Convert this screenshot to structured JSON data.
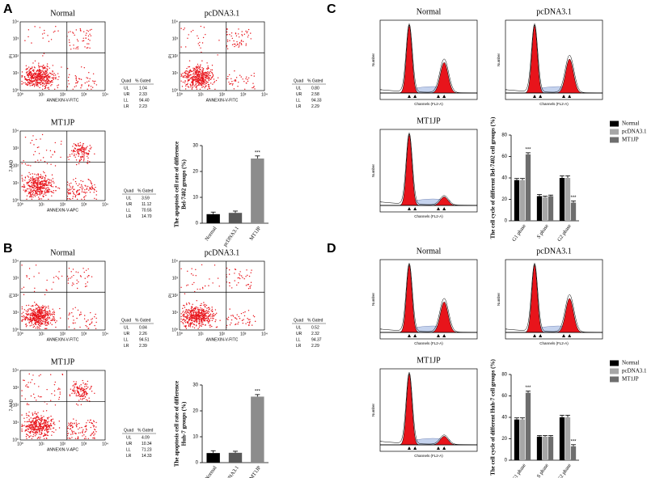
{
  "log_ticks": [
    "10⁰",
    "10¹",
    "10²",
    "10³",
    "10⁴"
  ],
  "panels": [
    {
      "label": "A",
      "plots": [
        {
          "title": "Normal",
          "xlabel": "ANNEXIN-V-FITC",
          "ylabel": "PI",
          "gates": {
            "header": [
              "Quad",
              "% Gated"
            ],
            "rows": [
              [
                "UL",
                "1.04"
              ],
              [
                "UR",
                "2.33"
              ],
              [
                "LL",
                "94.40"
              ],
              [
                "LR",
                "2.23"
              ]
            ]
          }
        },
        {
          "title": "pcDNA3.1",
          "xlabel": "ANNEXIN-V-FITC",
          "ylabel": "PI",
          "gates": {
            "header": [
              "Quad",
              "% Gated"
            ],
            "rows": [
              [
                "UL",
                "0.80"
              ],
              [
                "UR",
                "2.58"
              ],
              [
                "LL",
                "94.33"
              ],
              [
                "LR",
                "2.29"
              ]
            ]
          }
        },
        {
          "title": "MT1JP",
          "xlabel": "ANNEXIN-V-APC",
          "ylabel": "7-AAD",
          "gates": {
            "header": [
              "Quad",
              "% Gated"
            ],
            "rows": [
              [
                "UL",
                "3.59"
              ],
              [
                "UR",
                "11.12"
              ],
              [
                "LL",
                "70.55"
              ],
              [
                "LR",
                "14.70"
              ]
            ]
          }
        }
      ]
    },
    {
      "label": "B",
      "plots": [
        {
          "title": "Normal",
          "xlabel": "ANNEXIN-V-FITC",
          "ylabel": "PI",
          "gates": {
            "header": [
              "Quad",
              "% Gated"
            ],
            "rows": [
              [
                "UL",
                "0.84"
              ],
              [
                "UR",
                "2.26"
              ],
              [
                "LL",
                "94.51"
              ],
              [
                "LR",
                "2.39"
              ]
            ]
          }
        },
        {
          "title": "pcDNA3.1",
          "xlabel": "ANNEXIN-V-FITC",
          "ylabel": "PI",
          "gates": {
            "header": [
              "Quad",
              "% Gated"
            ],
            "rows": [
              [
                "UL",
                "0.52"
              ],
              [
                "UR",
                "2.32"
              ],
              [
                "LL",
                "94.37"
              ],
              [
                "LR",
                "2.29"
              ]
            ]
          }
        },
        {
          "title": "MT1JP",
          "xlabel": "ANNEXIN-V-APC",
          "ylabel": "7-AAD",
          "gates": {
            "header": [
              "Quad",
              "% Gated"
            ],
            "rows": [
              [
                "UL",
                "4.09"
              ],
              [
                "UR",
                "10.34"
              ],
              [
                "LL",
                "71.23"
              ],
              [
                "LR",
                "14.33"
              ]
            ]
          }
        }
      ]
    },
    {
      "label": "C",
      "plots": [
        {
          "title": "Normal",
          "xlabel": "Channels (FL2-A)",
          "ylabel": "Number"
        },
        {
          "title": "pcDNA3.1",
          "xlabel": "Channels (FL2-A)",
          "ylabel": "Number"
        },
        {
          "title": "MT1JP",
          "xlabel": "Channels (FL2-A)",
          "ylabel": "Number"
        }
      ]
    },
    {
      "label": "D",
      "plots": [
        {
          "title": "Normal",
          "xlabel": "Channels (FL2-A)",
          "ylabel": "Number"
        },
        {
          "title": "pcDNA3.1",
          "xlabel": "Channels (FL2-A)",
          "ylabel": "Number"
        },
        {
          "title": "MT1JP",
          "xlabel": "Channels (FL2-A)",
          "ylabel": "Number"
        }
      ]
    }
  ],
  "chart_data": [
    {
      "type": "bar",
      "ylabel": [
        "The apoptosis cell rate of difference",
        "Bel-7402 groups (%)"
      ],
      "categories": [
        "Normal",
        "pcDNA3.1",
        "MT1JP"
      ],
      "values": [
        3.5,
        4,
        25
      ],
      "errors": [
        0.8,
        0.7,
        1
      ],
      "colors": [
        "#000000",
        "#595959",
        "#8c8c8c"
      ],
      "ylim": [
        0,
        30
      ],
      "yticks": [
        0,
        10,
        20,
        30
      ],
      "annotations": [
        {
          "text": "***",
          "category": "MT1JP"
        }
      ]
    },
    {
      "type": "bar",
      "ylabel": [
        "The apoptosis cell rate of difference",
        "Huh-7 groups (%)"
      ],
      "categories": [
        "Normal",
        "pcDNA3.1",
        "MT1JP"
      ],
      "values": [
        3.7,
        3.8,
        25.5
      ],
      "errors": [
        0.9,
        0.6,
        0.8
      ],
      "colors": [
        "#000000",
        "#595959",
        "#8c8c8c"
      ],
      "ylim": [
        0,
        30
      ],
      "yticks": [
        0,
        10,
        20,
        30
      ],
      "annotations": [
        {
          "text": "***",
          "category": "MT1JP"
        }
      ]
    },
    {
      "type": "grouped-bar",
      "ylabel": [
        "The cell cycle of different Bel-7402 cell groups (%)"
      ],
      "categories": [
        "G1 phase",
        "S phase",
        "G2 phase"
      ],
      "series": [
        {
          "name": "Normal",
          "color": "#000000",
          "values": [
            38,
            23,
            40
          ],
          "errors": [
            1.5,
            1.5,
            2
          ]
        },
        {
          "name": "pcDNA3.1",
          "color": "#a6a6a6",
          "values": [
            38,
            22,
            40
          ],
          "errors": [
            1.5,
            1,
            2
          ]
        },
        {
          "name": "MT1JP",
          "color": "#6e6e6e",
          "values": [
            62,
            23,
            17
          ],
          "errors": [
            1.5,
            1,
            1.5
          ]
        }
      ],
      "ylim": [
        0,
        80
      ],
      "yticks": [
        0,
        20,
        40,
        60,
        80
      ],
      "annotations": [
        {
          "text": "***",
          "series": "MT1JP",
          "category": "G1 phase"
        },
        {
          "text": "***",
          "series": "MT1JP",
          "category": "G2 phase"
        }
      ]
    },
    {
      "type": "grouped-bar",
      "ylabel": [
        "The cell cycle of different Huh-7 cell groups (%)"
      ],
      "categories": [
        "G1 phase",
        "S phase",
        "G2 phase"
      ],
      "series": [
        {
          "name": "Normal",
          "color": "#000000",
          "values": [
            38,
            22,
            40
          ],
          "errors": [
            1.5,
            1,
            2
          ]
        },
        {
          "name": "pcDNA3.1",
          "color": "#a6a6a6",
          "values": [
            38,
            22,
            40
          ],
          "errors": [
            1.5,
            1,
            2
          ]
        },
        {
          "name": "MT1JP",
          "color": "#6e6e6e",
          "values": [
            63,
            22,
            13
          ],
          "errors": [
            1.5,
            1,
            1.5
          ]
        }
      ],
      "ylim": [
        0,
        80
      ],
      "yticks": [
        0,
        20,
        40,
        60,
        80
      ],
      "annotations": [
        {
          "text": "***",
          "series": "MT1JP",
          "category": "G1 phase"
        },
        {
          "text": "***",
          "series": "MT1JP",
          "category": "G2 phase"
        }
      ]
    }
  ]
}
